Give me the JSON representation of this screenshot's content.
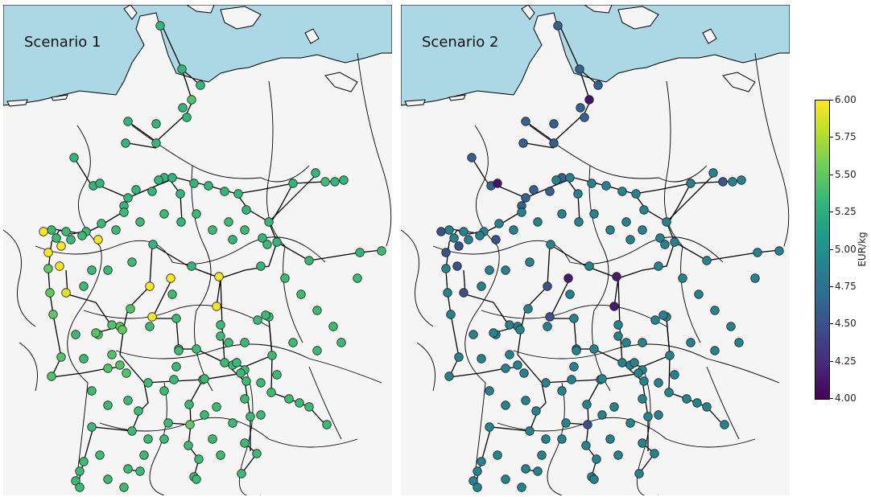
{
  "panels": [
    {
      "title": "Scenario 1",
      "scenario": 1
    },
    {
      "title": "Scenario 2",
      "scenario": 2
    }
  ],
  "colorbar": {
    "unit": "EUR/kg",
    "min": 4.0,
    "max": 6.0,
    "ticks": [
      "6.00",
      "5.75",
      "5.50",
      "5.25",
      "5.00",
      "4.75",
      "4.50",
      "4.25",
      "4.00"
    ]
  },
  "colors": {
    "sea": "#acd8e6",
    "land": "#f5f5f5",
    "border": "#000000",
    "network": "#000000",
    "station_outline": "#222222"
  },
  "station_prices": {
    "scenario_1": [
      5.32,
      5.32,
      5.32,
      5.45,
      5.32,
      5.32,
      5.32,
      5.32,
      5.32,
      5.32,
      5.32,
      5.32,
      5.32,
      5.32,
      5.32,
      5.32,
      5.32,
      5.32,
      5.32,
      5.32,
      5.32,
      5.32,
      5.32,
      5.32,
      5.32,
      5.32,
      5.32,
      5.32,
      5.32,
      5.32,
      5.32,
      5.32,
      5.38,
      5.32,
      5.32,
      5.32,
      5.32,
      5.32,
      5.32,
      5.32,
      5.32,
      5.36,
      5.36,
      5.36,
      5.36,
      5.36,
      5.36,
      5.36,
      5.36,
      5.98,
      5.98,
      5.98,
      5.98,
      5.98,
      5.9,
      5.5,
      5.5,
      5.5,
      5.5,
      5.5,
      5.5,
      5.45,
      5.45,
      5.45,
      5.45,
      5.45,
      5.45,
      5.45,
      5.45,
      5.45,
      5.98,
      5.98,
      5.98,
      5.98,
      5.98,
      5.36,
      5.36,
      5.36,
      5.36,
      5.36,
      5.36,
      5.36,
      5.36,
      5.36,
      5.36,
      5.36,
      5.36,
      5.36,
      5.36,
      5.36,
      5.36,
      5.36,
      5.36,
      5.5,
      5.36,
      5.36,
      5.36,
      5.36,
      5.36,
      5.36,
      5.36,
      5.36,
      5.36,
      5.36,
      5.36,
      5.36,
      5.36,
      5.36,
      5.36,
      5.36,
      5.36,
      5.36,
      5.36,
      5.36,
      5.36,
      5.36,
      5.36,
      5.36,
      5.36,
      5.36,
      5.36,
      5.36,
      5.36,
      5.36,
      5.36,
      5.36,
      5.36,
      5.36,
      5.36,
      5.36,
      5.36,
      5.36,
      5.36,
      5.36,
      5.36,
      5.36,
      5.36,
      5.36,
      5.36,
      5.36,
      5.36,
      5.36,
      5.36,
      5.36,
      5.36,
      5.36,
      5.36,
      5.36,
      5.36,
      5.36,
      5.36,
      5.36,
      5.36,
      5.36,
      5.36,
      5.36,
      5.36,
      5.36,
      5.36,
      5.36,
      5.36,
      5.36,
      5.36,
      5.36,
      5.36,
      5.36,
      5.36,
      5.36,
      5.65,
      5.36,
      5.36
    ],
    "scenario_2": [
      4.62,
      4.62,
      4.62,
      4.1,
      4.62,
      4.62,
      4.62,
      4.62,
      4.62,
      4.62,
      4.62,
      4.62,
      4.1,
      4.62,
      4.62,
      4.62,
      4.62,
      4.62,
      4.9,
      4.9,
      4.9,
      4.9,
      4.9,
      4.9,
      4.9,
      4.9,
      4.9,
      4.9,
      4.9,
      4.9,
      4.9,
      4.9,
      4.55,
      4.9,
      4.9,
      4.9,
      4.9,
      4.9,
      4.9,
      4.9,
      4.9,
      4.9,
      4.9,
      4.9,
      4.9,
      4.9,
      4.9,
      4.9,
      4.9,
      4.5,
      4.5,
      4.5,
      4.5,
      4.5,
      4.5,
      4.9,
      4.9,
      4.9,
      4.9,
      4.9,
      4.9,
      4.9,
      4.9,
      4.9,
      4.9,
      4.9,
      4.9,
      4.9,
      4.9,
      4.9,
      4.15,
      4.15,
      4.5,
      4.5,
      4.15,
      4.9,
      4.9,
      4.9,
      4.9,
      4.9,
      4.9,
      4.9,
      4.9,
      4.9,
      4.9,
      4.9,
      4.9,
      4.9,
      4.9,
      4.9,
      4.9,
      4.9,
      4.9,
      4.5,
      4.9,
      4.9,
      4.9,
      4.9,
      4.9,
      4.9,
      4.9,
      4.9,
      4.9,
      4.9,
      4.9,
      4.9,
      4.9,
      4.9,
      4.9,
      4.9,
      4.9,
      4.9,
      4.9,
      4.9,
      4.9,
      4.9,
      4.9,
      4.9,
      4.9,
      4.9,
      4.9,
      4.9,
      4.9,
      4.9,
      4.9,
      4.9,
      4.9,
      4.9,
      4.9,
      4.9,
      4.9,
      4.9,
      4.9,
      4.9,
      4.9,
      4.9,
      4.9,
      4.9,
      4.9,
      4.9,
      4.9,
      4.9,
      4.9,
      4.9,
      4.9,
      4.9,
      4.9,
      4.9,
      4.9,
      4.9,
      4.9,
      4.9,
      4.9,
      4.9,
      4.9,
      4.9,
      4.9,
      4.9,
      4.9,
      4.9,
      4.9,
      4.9,
      4.9,
      4.9,
      4.9,
      4.9,
      4.9,
      4.9,
      4.9,
      4.9,
      4.3,
      4.9,
      4.9
    ]
  }
}
